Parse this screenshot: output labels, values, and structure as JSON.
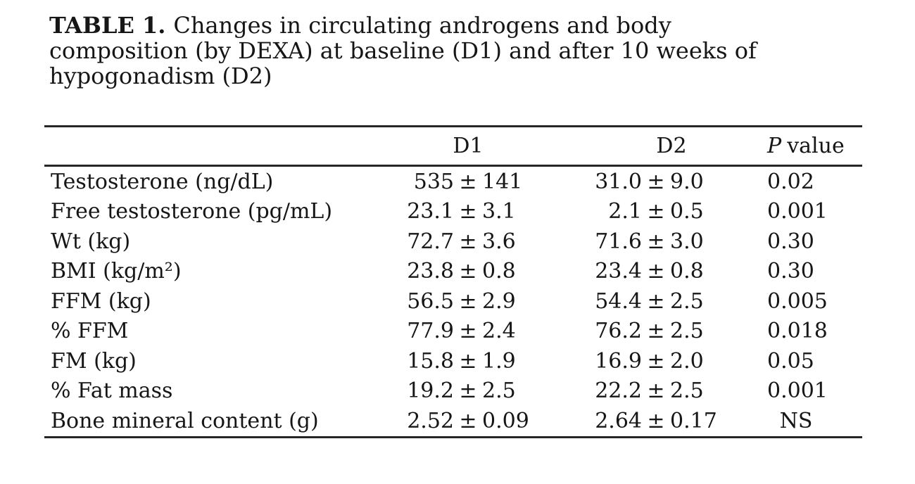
{
  "caption": {
    "bold": "TABLE 1.",
    "line1": "Changes in circulating androgens and body",
    "line2": "composition (by DEXA) at baseline (D1) and after 10 weeks of",
    "line3": "hypogonadism (D2)"
  },
  "table": {
    "pm": "±",
    "header": {
      "d1": "D1",
      "d2": "D2",
      "p_italic": "P",
      "p_rest": "value"
    },
    "rows": [
      {
        "label": "Testosterone (ng/dL)",
        "d1": {
          "mean": "535",
          "sd": "141"
        },
        "d2": {
          "mean": "31.0",
          "sd": "9.0"
        },
        "p": "0.02"
      },
      {
        "label": "Free testosterone (pg/mL)",
        "d1": {
          "mean": "23.1",
          "sd": "3.1"
        },
        "d2": {
          "mean": "2.1",
          "sd": "0.5"
        },
        "p": "0.001"
      },
      {
        "label": "Wt (kg)",
        "d1": {
          "mean": "72.7",
          "sd": "3.6"
        },
        "d2": {
          "mean": "71.6",
          "sd": "3.0"
        },
        "p": "0.30"
      },
      {
        "label": "BMI (kg/m²)",
        "d1": {
          "mean": "23.8",
          "sd": "0.8"
        },
        "d2": {
          "mean": "23.4",
          "sd": "0.8"
        },
        "p": "0.30"
      },
      {
        "label": "FFM (kg)",
        "d1": {
          "mean": "56.5",
          "sd": "2.9"
        },
        "d2": {
          "mean": "54.4",
          "sd": "2.5"
        },
        "p": "0.005"
      },
      {
        "label": "% FFM",
        "d1": {
          "mean": "77.9",
          "sd": "2.4"
        },
        "d2": {
          "mean": "76.2",
          "sd": "2.5"
        },
        "p": "0.018"
      },
      {
        "label": "FM (kg)",
        "d1": {
          "mean": "15.8",
          "sd": "1.9"
        },
        "d2": {
          "mean": "16.9",
          "sd": "2.0"
        },
        "p": "0.05"
      },
      {
        "label": "% Fat mass",
        "d1": {
          "mean": "19.2",
          "sd": "2.5"
        },
        "d2": {
          "mean": "22.2",
          "sd": "2.5"
        },
        "p": "0.001"
      },
      {
        "label": "Bone mineral content (g)",
        "d1": {
          "mean": "2.52",
          "sd": "0.09"
        },
        "d2": {
          "mean": "2.64",
          "sd": "0.17"
        },
        "p": "NS"
      }
    ]
  },
  "colors": {
    "text": "#161616",
    "rule": "#262626",
    "background": "#ffffff"
  }
}
